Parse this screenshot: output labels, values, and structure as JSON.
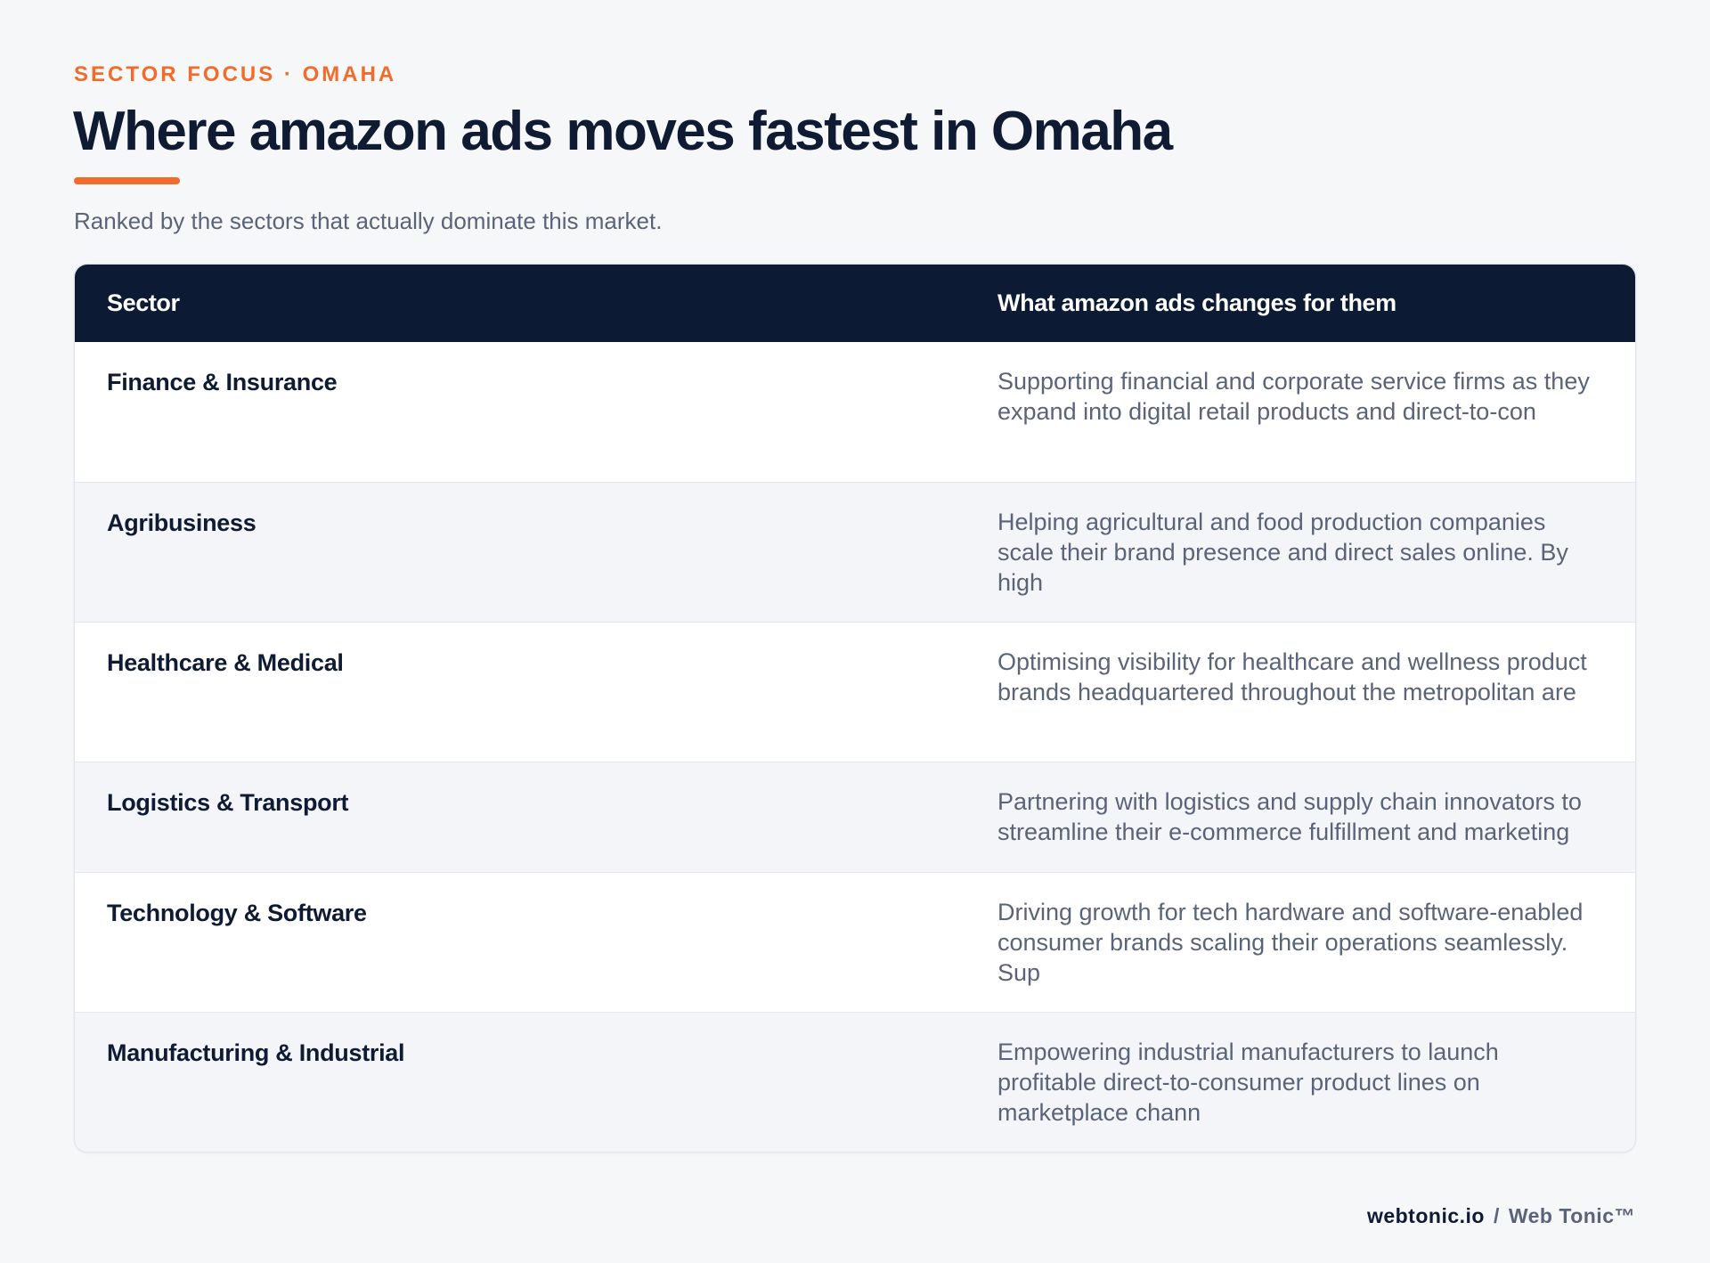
{
  "header": {
    "eyebrow": "SECTOR FOCUS · OMAHA",
    "title": "Where amazon ads moves fastest in Omaha",
    "subtitle": "Ranked by the sectors that actually dominate this market."
  },
  "table": {
    "columns": [
      "Sector",
      "What amazon ads changes for them"
    ],
    "rows": [
      {
        "sector": "Finance & Insurance",
        "description": "Supporting financial and corporate service firms as they expand into digital retail products and direct-to-con"
      },
      {
        "sector": "Agribusiness",
        "description": "Helping agricultural and food production companies scale their brand presence and direct sales online. By high"
      },
      {
        "sector": "Healthcare & Medical",
        "description": "Optimising visibility for healthcare and wellness product brands headquartered throughout the metropolitan are"
      },
      {
        "sector": "Logistics & Transport",
        "description": "Partnering with logistics and supply chain innovators to streamline their e-commerce fulfillment and marketing"
      },
      {
        "sector": "Technology & Software",
        "description": "Driving growth for tech hardware and software-enabled consumer brands scaling their operations seamlessly. Sup"
      },
      {
        "sector": "Manufacturing & Industrial",
        "description": "Empowering industrial manufacturers to launch profitable direct-to-consumer product lines on marketplace chann"
      }
    ]
  },
  "footer": {
    "domain": "webtonic.io",
    "separator": "/",
    "brand": "Web Tonic™"
  },
  "colors": {
    "accent": "#f26b2a",
    "navy": "#0c1b33",
    "muted": "#5a6478",
    "background": "#f6f7f9"
  }
}
